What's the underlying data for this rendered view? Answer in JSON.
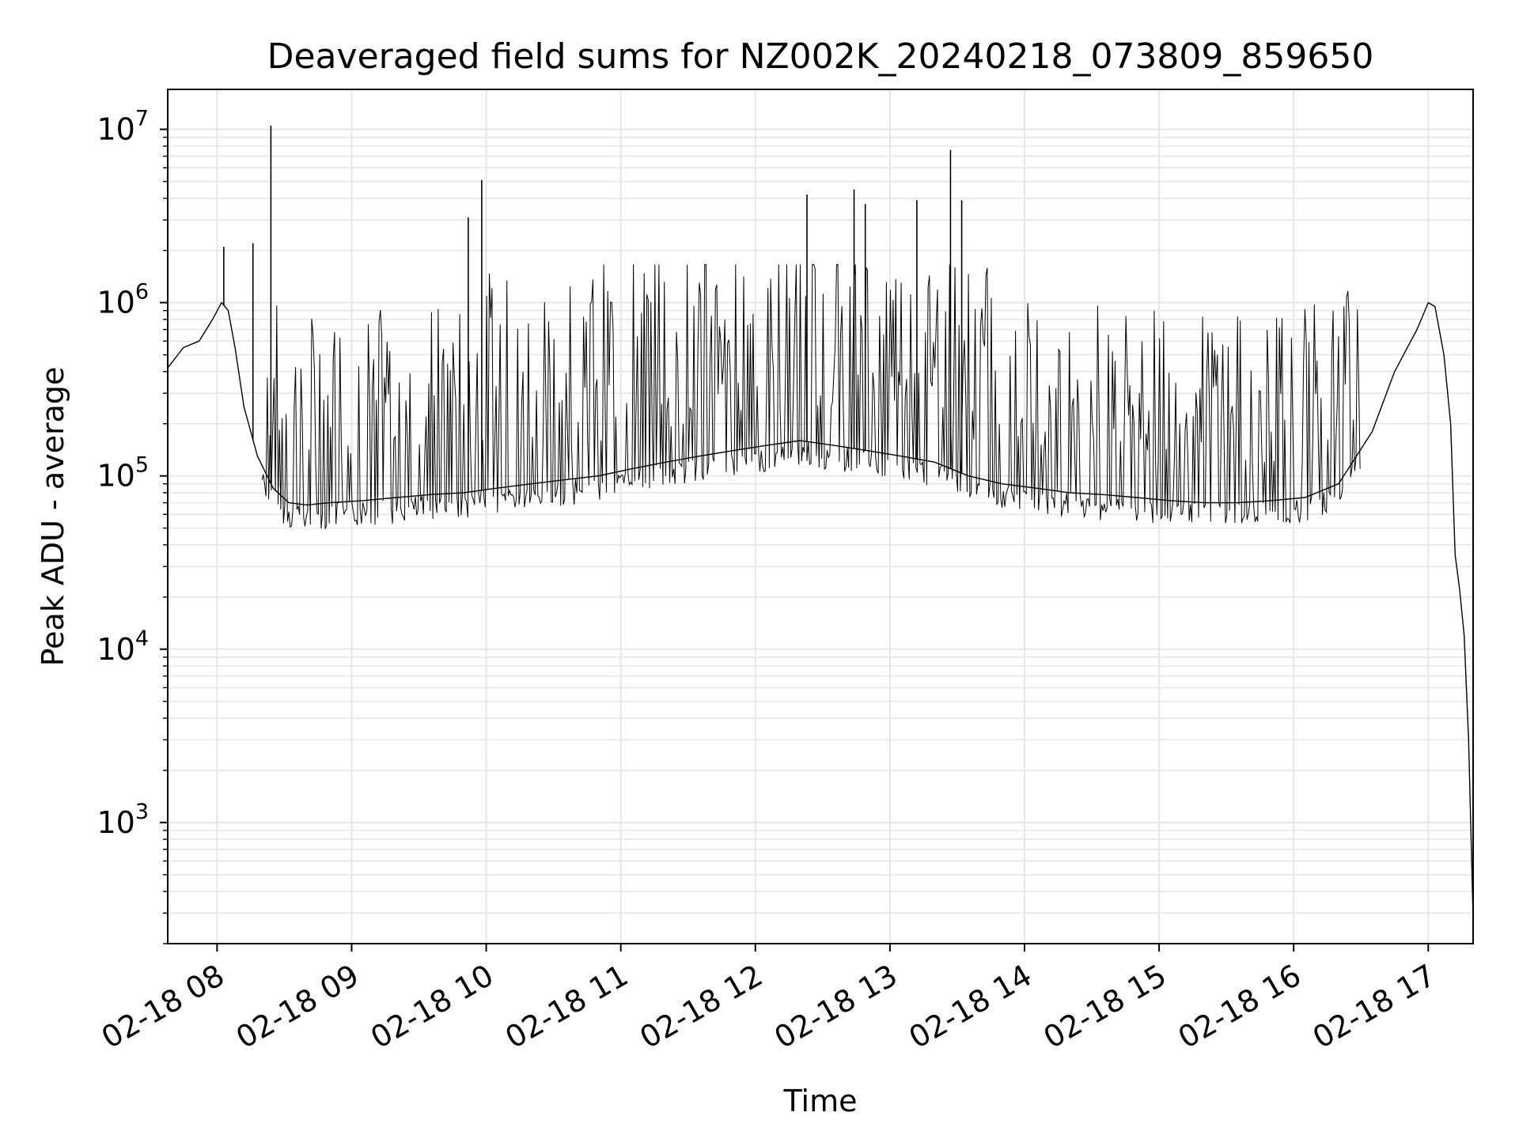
{
  "chart_data": {
    "type": "line",
    "title": "Deaveraged field sums for NZ002K_20240218_073809_859650",
    "xlabel": "Time",
    "ylabel": "Peak ADU - average",
    "yscale": "log",
    "ylim": [
      200,
      17000000
    ],
    "xlim": [
      "2024-02-18 07:38",
      "2024-02-18 17:20"
    ],
    "grid": true,
    "line_color": "#000000",
    "grid_color": "#e6e6e6",
    "x_ticks": [
      "02-18 08",
      "02-18 09",
      "02-18 10",
      "02-18 11",
      "02-18 12",
      "02-18 13",
      "02-18 14",
      "02-18 15",
      "02-18 16",
      "02-18 17"
    ],
    "y_ticks": [
      {
        "base": "10",
        "exp": "3",
        "value": 1000
      },
      {
        "base": "10",
        "exp": "4",
        "value": 10000
      },
      {
        "base": "10",
        "exp": "5",
        "value": 100000
      },
      {
        "base": "10",
        "exp": "6",
        "value": 1000000
      },
      {
        "base": "10",
        "exp": "7",
        "value": 10000000
      }
    ],
    "series": [
      {
        "x": [
          "2024-02-18 07:38",
          "2024-02-18 07:45",
          "2024-02-18 07:52",
          "2024-02-18 07:58",
          "2024-02-18 08:02",
          "2024-02-18 08:05",
          "2024-02-18 08:08",
          "2024-02-18 08:12",
          "2024-02-18 08:18",
          "2024-02-18 08:25",
          "2024-02-18 08:32",
          "2024-02-18 08:40",
          "2024-02-18 08:50",
          "2024-02-18 09:05",
          "2024-02-18 09:20",
          "2024-02-18 09:35",
          "2024-02-18 09:50",
          "2024-02-18 10:05",
          "2024-02-18 10:20",
          "2024-02-18 10:35",
          "2024-02-18 10:50",
          "2024-02-18 11:05",
          "2024-02-18 11:20",
          "2024-02-18 11:35",
          "2024-02-18 11:50",
          "2024-02-18 12:05",
          "2024-02-18 12:20",
          "2024-02-18 12:35",
          "2024-02-18 12:50",
          "2024-02-18 13:05",
          "2024-02-18 13:20",
          "2024-02-18 13:35",
          "2024-02-18 13:50",
          "2024-02-18 14:05",
          "2024-02-18 14:20",
          "2024-02-18 14:35",
          "2024-02-18 14:50",
          "2024-02-18 15:05",
          "2024-02-18 15:20",
          "2024-02-18 15:35",
          "2024-02-18 15:50",
          "2024-02-18 16:05",
          "2024-02-18 16:20",
          "2024-02-18 16:35",
          "2024-02-18 16:45",
          "2024-02-18 16:55",
          "2024-02-18 17:00",
          "2024-02-18 17:03",
          "2024-02-18 17:07",
          "2024-02-18 17:10",
          "2024-02-18 17:12",
          "2024-02-18 17:14",
          "2024-02-18 17:16",
          "2024-02-18 17:18",
          "2024-02-18 17:20"
        ],
        "y": [
          420000,
          550000,
          600000,
          800000,
          1000000,
          900000,
          550000,
          250000,
          130000,
          85000,
          70000,
          68000,
          70000,
          72000,
          75000,
          78000,
          80000,
          85000,
          90000,
          95000,
          100000,
          110000,
          120000,
          130000,
          140000,
          150000,
          160000,
          150000,
          140000,
          130000,
          120000,
          100000,
          90000,
          85000,
          80000,
          78000,
          75000,
          72000,
          70000,
          70000,
          72000,
          75000,
          90000,
          180000,
          400000,
          700000,
          1000000,
          950000,
          500000,
          200000,
          35000,
          22000,
          12000,
          3000,
          280
        ]
      }
    ],
    "spikes": [
      {
        "x": "2024-02-18 08:03",
        "y": 2100000
      },
      {
        "x": "2024-02-18 08:16",
        "y": 2200000
      },
      {
        "x": "2024-02-18 08:24",
        "y": 10500000
      },
      {
        "x": "2024-02-18 09:52",
        "y": 3100000
      },
      {
        "x": "2024-02-18 09:58",
        "y": 5100000
      },
      {
        "x": "2024-02-18 12:23",
        "y": 4200000
      },
      {
        "x": "2024-02-18 12:44",
        "y": 4500000
      },
      {
        "x": "2024-02-18 12:49",
        "y": 3700000
      },
      {
        "x": "2024-02-18 13:12",
        "y": 3900000
      },
      {
        "x": "2024-02-18 13:27",
        "y": 7600000
      },
      {
        "x": "2024-02-18 13:32",
        "y": 3900000
      }
    ]
  }
}
